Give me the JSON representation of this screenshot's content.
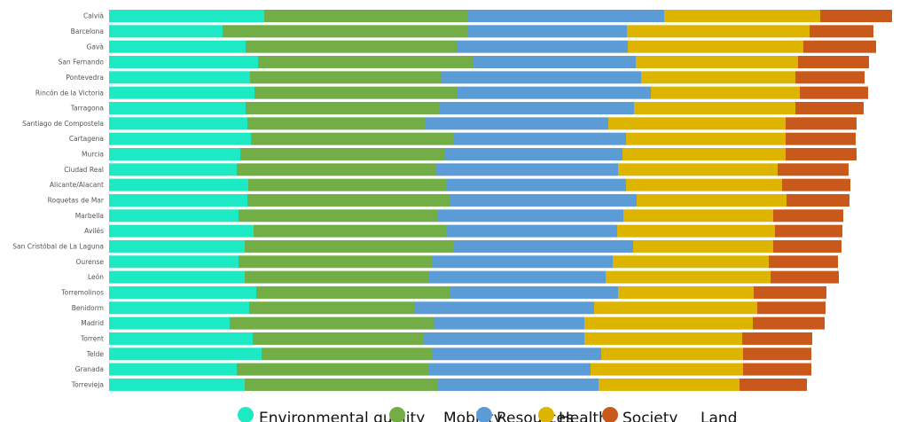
{
  "chart_data": {
    "type": "bar",
    "orientation": "horizontal",
    "stacked": true,
    "grid": false,
    "legend_position": "bottom",
    "categories": [
      "Calvià",
      "Barcelona",
      "Gavà",
      "San Fernando",
      "Pontevedra",
      "Rincón de la Victoria",
      "Tarragona",
      "Santiago de Compostela",
      "Cartagena",
      "Murcia",
      "Ciudad Real",
      "Alicante/Alacant",
      "Roquetas de Mar",
      "Marbella",
      "Avilés",
      "San Cristóbal de La Laguna",
      "Ourense",
      "León",
      "Torremolinos",
      "Benidorm",
      "Madrid",
      "Torrent",
      "Telde",
      "Granada",
      "Torrevieja"
    ],
    "series": [
      {
        "name": "Environmental quality",
        "color": "#1DE9C5",
        "values": [
          175,
          128,
          154,
          168,
          159,
          164,
          154,
          156,
          160,
          148,
          144,
          157,
          156,
          146,
          163,
          153,
          146,
          153,
          166,
          158,
          136,
          162,
          172,
          144,
          153
        ]
      },
      {
        "name": "Mobility",
        "color": "#73AD45",
        "values": [
          229,
          277,
          238,
          242,
          215,
          228,
          218,
          201,
          228,
          230,
          225,
          224,
          229,
          224,
          217,
          235,
          219,
          207,
          218,
          187,
          230,
          193,
          192,
          216,
          218
        ]
      },
      {
        "name": "Resources",
        "color": "#5B9BD6",
        "values": [
          222,
          179,
          193,
          184,
          226,
          219,
          220,
          206,
          195,
          201,
          205,
          202,
          210,
          210,
          193,
          203,
          203,
          200,
          190,
          202,
          170,
          181,
          191,
          183,
          181
        ]
      },
      {
        "name": "Health",
        "color": "#DDB400",
        "values": [
          176,
          206,
          198,
          183,
          174,
          168,
          182,
          200,
          180,
          184,
          180,
          176,
          169,
          169,
          178,
          158,
          176,
          186,
          153,
          184,
          190,
          178,
          160,
          172,
          159
        ]
      },
      {
        "name": "Society",
        "color": "#C9591A",
        "values": [
          81,
          72,
          82,
          80,
          78,
          77,
          77,
          80,
          79,
          80,
          80,
          77,
          71,
          79,
          76,
          77,
          78,
          77,
          82,
          77,
          81,
          79,
          77,
          77,
          76
        ]
      },
      {
        "name": "Land",
        "color": "",
        "values": [
          0,
          0,
          0,
          0,
          0,
          0,
          0,
          0,
          0,
          0,
          0,
          0,
          0,
          0,
          0,
          0,
          0,
          0,
          0,
          0,
          0,
          0,
          0,
          0,
          0
        ]
      }
    ],
    "legend": {
      "labels": [
        "Environmental quality",
        "Mobility",
        "Resources",
        "Health",
        "Society",
        "Land"
      ],
      "colors": [
        "#1DE9C5",
        "#73AD45",
        "#5B9BD6",
        "#DDB400",
        "#C9591A",
        ""
      ]
    },
    "xlim": [
      0,
      883
    ]
  }
}
